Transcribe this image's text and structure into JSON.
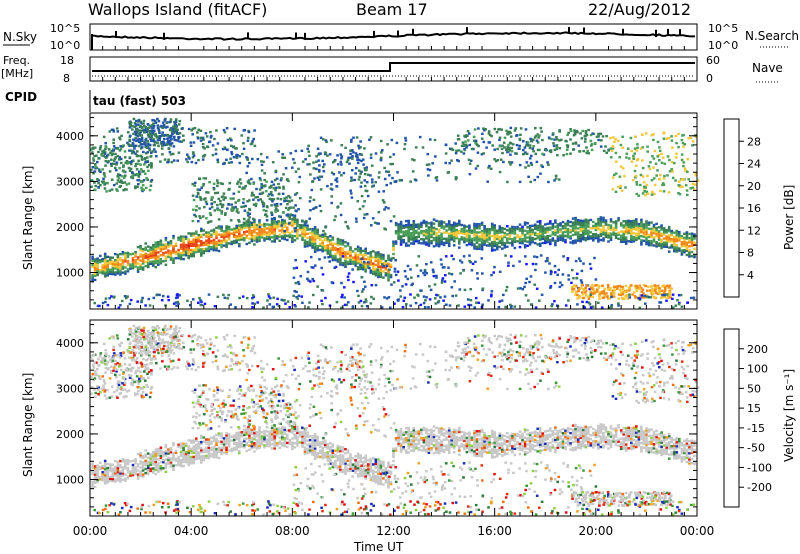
{
  "header": {
    "station": "Wallops Island (fitACF)",
    "beam": "Beam 17",
    "date": "22/Aug/2012"
  },
  "top_panels": {
    "nsky_label": "N.Sky",
    "nsky_tick_high": "10^5",
    "nsky_tick_low": "10^0",
    "nsearch_label": "N.Search",
    "nsearch_tick_high": "10^5",
    "nsearch_tick_low": "10^0",
    "freq_label": "Freq.",
    "freq_unit": "[MHz]",
    "freq_tick_high": "18",
    "freq_tick_low": "8",
    "nave_label": "Nave",
    "nave_tick_high": "60",
    "nave_tick_low": "0",
    "cpid_label": "CPID",
    "cpid_value": "tau (fast) 503"
  },
  "axes": {
    "ylabel": "Slant Range [km]",
    "xlabel": "Time UT",
    "y_ticks": [
      "1000",
      "2000",
      "3000",
      "4000"
    ],
    "x_ticks": [
      "00:00",
      "04:00",
      "08:00",
      "12:00",
      "16:00",
      "20:00",
      "00:00"
    ]
  },
  "colorbars": {
    "power_label": "Power [dB]",
    "power_ticks": [
      "4",
      "8",
      "12",
      "16",
      "20",
      "24",
      "28"
    ],
    "power_colors": [
      "#1a1aff",
      "#2255aa",
      "#3a7f55",
      "#4aa05a",
      "#f2c83a",
      "#f28a1a",
      "#e84818",
      "#e01010"
    ],
    "velocity_label": "Velocity [m s⁻¹]",
    "velocity_ticks": [
      "200",
      "100",
      "50",
      "15",
      "-15",
      "-50",
      "-100",
      "-200"
    ],
    "velocity_colors": [
      "#1a2db8",
      "#2a7a3a",
      "#3a9a3a",
      "#8ad040",
      "#c8c8c8",
      "#f0a020",
      "#f07010",
      "#e03010",
      "#e01010"
    ]
  },
  "chart_data": [
    {
      "type": "heatmap",
      "title": "Power",
      "xlabel": "Time UT",
      "ylabel": "Slant Range [km]",
      "xlim": [
        "00:00",
        "00:00"
      ],
      "ylim": [
        200,
        4500
      ],
      "colorbar": "Power [dB]",
      "colorbar_range": [
        0,
        30
      ],
      "features": [
        {
          "name": "main band",
          "x_hours": [
            0,
            2,
            4,
            6,
            8,
            10,
            11.9,
            12,
            14,
            16,
            18,
            20,
            22,
            24
          ],
          "range_km": [
            1100,
            1350,
            1650,
            1900,
            2000,
            1450,
            1100,
            1900,
            1900,
            1800,
            1900,
            2000,
            1900,
            1600
          ],
          "power_db": [
            20,
            26,
            28,
            26,
            22,
            24,
            26,
            14,
            18,
            18,
            16,
            18,
            22,
            24
          ]
        }
      ]
    },
    {
      "type": "heatmap",
      "title": "Velocity",
      "xlabel": "Time UT",
      "ylabel": "Slant Range [km]",
      "xlim": [
        "00:00",
        "00:00"
      ],
      "ylim": [
        200,
        4500
      ],
      "colorbar": "Velocity [m s⁻¹]",
      "colorbar_range": [
        -200,
        200
      ]
    }
  ]
}
